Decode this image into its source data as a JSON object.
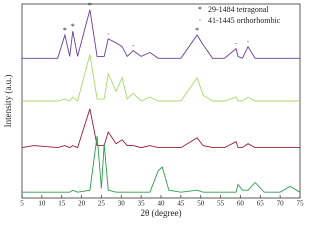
{
  "chart_data": {
    "type": "line",
    "xlabel": "2θ (degree)",
    "ylabel": "Intensity (a.u.)",
    "xlim": [
      5,
      75
    ],
    "xticks": [
      5,
      10,
      15,
      20,
      25,
      30,
      35,
      40,
      45,
      50,
      55,
      60,
      65,
      70,
      75
    ],
    "ylim": [
      0,
      100
    ],
    "x": [
      5,
      8,
      14,
      15.8,
      17,
      17.8,
      19,
      22.1,
      23.9,
      25,
      25.7,
      26.7,
      28.7,
      30.2,
      31.5,
      33,
      35,
      37.2,
      39.3,
      40.3,
      42,
      45,
      49.1,
      50.6,
      53,
      56,
      58.9,
      59.4,
      60.5,
      61.9,
      63.7,
      66,
      70,
      72.5,
      75
    ],
    "series": [
      {
        "color": "#6a3d9a",
        "values": [
          72,
          72,
          72,
          84,
          73,
          86,
          73,
          97,
          73,
          73,
          73,
          82,
          80,
          78,
          73,
          76,
          73,
          75,
          72,
          72,
          72,
          72,
          84,
          79,
          72,
          72,
          77,
          73,
          72,
          78,
          72,
          72,
          72,
          72,
          72
        ]
      },
      {
        "color": "#a6d96a",
        "values": [
          50,
          50,
          50,
          51,
          50,
          52,
          50,
          74,
          51,
          51,
          51,
          64,
          55,
          62,
          51,
          54,
          50,
          52,
          50,
          50,
          50,
          50,
          62,
          53,
          50,
          50,
          52,
          50,
          50,
          52,
          50,
          50,
          50,
          50,
          50
        ]
      },
      {
        "color": "#a0193a",
        "values": [
          26,
          27,
          26,
          27,
          26,
          27,
          26,
          46,
          27,
          27,
          27,
          34,
          28,
          30,
          27,
          27,
          26,
          27,
          26,
          26,
          26,
          26,
          31,
          27,
          26,
          26,
          29,
          26,
          26,
          28,
          26,
          26,
          26,
          26,
          26
        ]
      },
      {
        "color": "#2e9e4f",
        "values": [
          3,
          3,
          3,
          3,
          3,
          4,
          3,
          4,
          32,
          5,
          28,
          4,
          3,
          3,
          3,
          3,
          3,
          3,
          14,
          16,
          4,
          3,
          4,
          3,
          3,
          3,
          3,
          7,
          4,
          4,
          8,
          3,
          3,
          6,
          3
        ]
      }
    ],
    "legend": [
      {
        "symbol": "*",
        "label": "29-1484 tetragonal"
      },
      {
        "symbol": "·",
        "label": "41-1445 orthorhombic"
      }
    ],
    "annotations": [
      {
        "text": "*",
        "x": 22.1,
        "y": 99
      },
      {
        "text": "*",
        "x": 17.8,
        "y": 88
      },
      {
        "text": "*",
        "x": 15.8,
        "y": 86
      },
      {
        "text": "*",
        "x": 49.1,
        "y": 86
      },
      {
        "text": "·",
        "x": 26.7,
        "y": 84
      },
      {
        "text": "·",
        "x": 33,
        "y": 78
      },
      {
        "text": "·",
        "x": 58.9,
        "y": 79
      },
      {
        "text": "·",
        "x": 61.9,
        "y": 80
      }
    ]
  }
}
